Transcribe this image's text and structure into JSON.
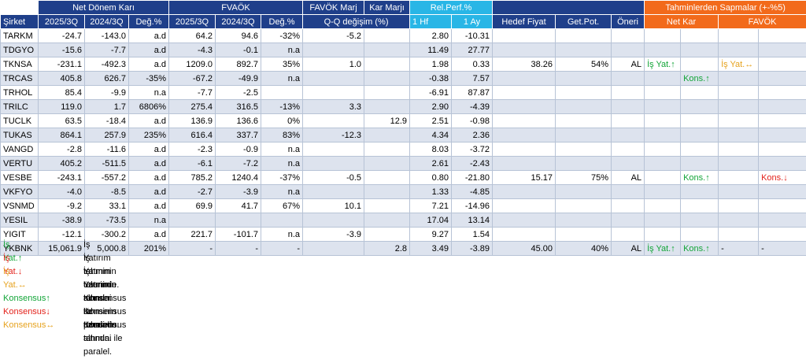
{
  "header": {
    "sirket": "Şirket",
    "net_donem_kari": "Net Dönem Karı",
    "favok": "FVAÖK",
    "favok_marj": "FAVÖK Marj",
    "kar_marji": "Kar Marjı",
    "rel_perf": "Rel.Perf.%",
    "sapmalar": "Tahminlerden Sapmalar (+-%5)",
    "y2025": "2025/3Q",
    "y2024": "2024/3Q",
    "deg": "Değ.%",
    "qq": "Q-Q değişim (%)",
    "hf": "1 Hf",
    "ay": "1 Ay",
    "hedef": "Hedef Fiyat",
    "getpot": "Get.Pot.",
    "oneri": "Öneri",
    "netkar": "Net Kar",
    "favok2": "FAVÖK"
  },
  "rows": [
    {
      "name": "TARKM",
      "nk25": "-24.7",
      "nk24": "-143.0",
      "nkd": "a.d",
      "fv25": "64.2",
      "fv24": "94.6",
      "fvd": "-32%",
      "fm": "-5.2",
      "km": "",
      "hf": "2.80",
      "ay": "-10.31",
      "hedef": "",
      "getpot": "",
      "oneri": "",
      "dev_nk": "",
      "dev_nk2": "",
      "dev_fv": "",
      "dev_fv2": ""
    },
    {
      "name": "TDGYO",
      "nk25": "-15.6",
      "nk24": "-7.7",
      "nkd": "a.d",
      "fv25": "-4.3",
      "fv24": "-0.1",
      "fvd": "n.a",
      "fm": "",
      "km": "",
      "hf": "11.49",
      "ay": "27.77",
      "hedef": "",
      "getpot": "",
      "oneri": "",
      "dev_nk": "",
      "dev_nk2": "",
      "dev_fv": "",
      "dev_fv2": ""
    },
    {
      "name": "TKNSA",
      "nk25": "-231.1",
      "nk24": "-492.3",
      "nkd": "a.d",
      "fv25": "1209.0",
      "fv24": "892.7",
      "fvd": "35%",
      "fm": "1.0",
      "km": "",
      "hf": "1.98",
      "ay": "0.33",
      "hedef": "38.26",
      "getpot": "54%",
      "oneri": "AL",
      "dev_nk": "İş Yat.↑",
      "dev_nk2": "",
      "dev_fv": "İş Yat.↔",
      "dev_fv2": ""
    },
    {
      "name": "TRCAS",
      "nk25": "405.8",
      "nk24": "626.7",
      "nkd": "-35%",
      "fv25": "-67.2",
      "fv24": "-49.9",
      "fvd": "n.a",
      "fm": "",
      "km": "",
      "hf": "-0.38",
      "ay": "7.57",
      "hedef": "",
      "getpot": "",
      "oneri": "",
      "dev_nk": "",
      "dev_nk2": "Kons.↑",
      "dev_fv": "",
      "dev_fv2": ""
    },
    {
      "name": "TRHOL",
      "nk25": "85.4",
      "nk24": "-9.9",
      "nkd": "n.a",
      "fv25": "-7.7",
      "fv24": "-2.5",
      "fvd": "",
      "fm": "",
      "km": "",
      "hf": "-6.91",
      "ay": "87.87",
      "hedef": "",
      "getpot": "",
      "oneri": "",
      "dev_nk": "",
      "dev_nk2": "",
      "dev_fv": "",
      "dev_fv2": ""
    },
    {
      "name": "TRILC",
      "nk25": "119.0",
      "nk24": "1.7",
      "nkd": "6806%",
      "fv25": "275.4",
      "fv24": "316.5",
      "fvd": "-13%",
      "fm": "3.3",
      "km": "",
      "hf": "2.90",
      "ay": "-4.39",
      "hedef": "",
      "getpot": "",
      "oneri": "",
      "dev_nk": "",
      "dev_nk2": "",
      "dev_fv": "",
      "dev_fv2": ""
    },
    {
      "name": "TUCLK",
      "nk25": "63.5",
      "nk24": "-18.4",
      "nkd": "a.d",
      "fv25": "136.9",
      "fv24": "136.6",
      "fvd": "0%",
      "fm": "",
      "km": "12.9",
      "hf": "2.51",
      "ay": "-0.98",
      "hedef": "",
      "getpot": "",
      "oneri": "",
      "dev_nk": "",
      "dev_nk2": "",
      "dev_fv": "",
      "dev_fv2": ""
    },
    {
      "name": "TUKAS",
      "nk25": "864.1",
      "nk24": "257.9",
      "nkd": "235%",
      "fv25": "616.4",
      "fv24": "337.7",
      "fvd": "83%",
      "fm": "-12.3",
      "km": "",
      "hf": "4.34",
      "ay": "2.36",
      "hedef": "",
      "getpot": "",
      "oneri": "",
      "dev_nk": "",
      "dev_nk2": "",
      "dev_fv": "",
      "dev_fv2": ""
    },
    {
      "name": "VANGD",
      "nk25": "-2.8",
      "nk24": "-11.6",
      "nkd": "a.d",
      "fv25": "-2.3",
      "fv24": "-0.9",
      "fvd": "n.a",
      "fm": "",
      "km": "",
      "hf": "8.03",
      "ay": "-3.72",
      "hedef": "",
      "getpot": "",
      "oneri": "",
      "dev_nk": "",
      "dev_nk2": "",
      "dev_fv": "",
      "dev_fv2": ""
    },
    {
      "name": "VERTU",
      "nk25": "405.2",
      "nk24": "-511.5",
      "nkd": "a.d",
      "fv25": "-6.1",
      "fv24": "-7.2",
      "fvd": "n.a",
      "fm": "",
      "km": "",
      "hf": "2.61",
      "ay": "-2.43",
      "hedef": "",
      "getpot": "",
      "oneri": "",
      "dev_nk": "",
      "dev_nk2": "",
      "dev_fv": "",
      "dev_fv2": ""
    },
    {
      "name": "VESBE",
      "nk25": "-243.1",
      "nk24": "-557.2",
      "nkd": "a.d",
      "fv25": "785.2",
      "fv24": "1240.4",
      "fvd": "-37%",
      "fm": "-0.5",
      "km": "",
      "hf": "0.80",
      "ay": "-21.80",
      "hedef": "15.17",
      "getpot": "75%",
      "oneri": "AL",
      "dev_nk": "",
      "dev_nk2": "Kons.↑",
      "dev_fv": "",
      "dev_fv2": "Kons.↓"
    },
    {
      "name": "VKFYO",
      "nk25": "-4.0",
      "nk24": "-8.5",
      "nkd": "a.d",
      "fv25": "-2.7",
      "fv24": "-3.9",
      "fvd": "n.a",
      "fm": "",
      "km": "",
      "hf": "1.33",
      "ay": "-4.85",
      "hedef": "",
      "getpot": "",
      "oneri": "",
      "dev_nk": "",
      "dev_nk2": "",
      "dev_fv": "",
      "dev_fv2": ""
    },
    {
      "name": "VSNMD",
      "nk25": "-9.2",
      "nk24": "33.1",
      "nkd": "a.d",
      "fv25": "69.9",
      "fv24": "41.7",
      "fvd": "67%",
      "fm": "10.1",
      "km": "",
      "hf": "7.21",
      "ay": "-14.96",
      "hedef": "",
      "getpot": "",
      "oneri": "",
      "dev_nk": "",
      "dev_nk2": "",
      "dev_fv": "",
      "dev_fv2": ""
    },
    {
      "name": "YESIL",
      "nk25": "-38.9",
      "nk24": "-73.5",
      "nkd": "n.a",
      "fv25": "",
      "fv24": "",
      "fvd": "",
      "fm": "",
      "km": "",
      "hf": "17.04",
      "ay": "13.14",
      "hedef": "",
      "getpot": "",
      "oneri": "",
      "dev_nk": "",
      "dev_nk2": "",
      "dev_fv": "",
      "dev_fv2": ""
    },
    {
      "name": "YIGIT",
      "nk25": "-12.1",
      "nk24": "-300.2",
      "nkd": "a.d",
      "fv25": "221.7",
      "fv24": "-101.7",
      "fvd": "n.a",
      "fm": "-3.9",
      "km": "",
      "hf": "9.27",
      "ay": "1.54",
      "hedef": "",
      "getpot": "",
      "oneri": "",
      "dev_nk": "",
      "dev_nk2": "",
      "dev_fv": "",
      "dev_fv2": ""
    },
    {
      "name": "YKBNK",
      "nk25": "15,061.9",
      "nk24": "5,000.8",
      "nkd": "201%",
      "fv25": "-",
      "fv24": "-",
      "fvd": "-",
      "fm": "",
      "km": "2.8",
      "hf": "3.49",
      "ay": "-3.89",
      "hedef": "45.00",
      "getpot": "40%",
      "oneri": "AL",
      "dev_nk": "İş Yat.↑",
      "dev_nk2": "Kons.↑",
      "dev_fv": "-",
      "dev_fv2": "-"
    }
  ],
  "legend": [
    {
      "key": "İş Yat.↑",
      "desc": "İş Yatırım tahminin üzerinde."
    },
    {
      "key": "İş Yat.↓",
      "desc": "İş Yatırım tahminin altında."
    },
    {
      "key": "İş Yat.↔",
      "desc": "İş Yatırım tahmini ile paralel."
    },
    {
      "key": "Konsensus↑",
      "desc": "Konsensus tahminin üzerinde."
    },
    {
      "key": "Konsensus↓",
      "desc": "Konsensus tahminin altında."
    },
    {
      "key": "Konsensus↔",
      "desc": "Konsensus tahmini ile paralel."
    }
  ],
  "colors": {
    "up": "#13a538",
    "down": "#e3221b",
    "flat": "#e6a21e",
    "header": "#1f3f8a",
    "header_light": "#29b6e6",
    "header_orange": "#f26a1b",
    "row_shade": "#dde3ee"
  }
}
